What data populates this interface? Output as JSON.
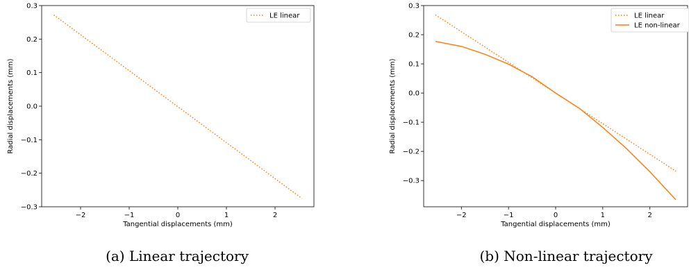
{
  "captions": {
    "a": "(a) Linear trajectory",
    "b": "(b) Non-linear trajectory"
  },
  "colors": {
    "series": "#ff7f0e",
    "axis": "#000000"
  },
  "chart_data": [
    {
      "type": "line",
      "title": "",
      "xlabel": "Tangential displacements (mm)",
      "ylabel": "Radial displacements (mm)",
      "xlim": [
        -2.8,
        2.8
      ],
      "ylim": [
        -0.3,
        0.3
      ],
      "xticks": [
        -2,
        -1,
        0,
        1,
        2
      ],
      "xtick_labels": [
        "−2",
        "−1",
        "0",
        "1",
        "2"
      ],
      "yticks": [
        -0.3,
        -0.2,
        -0.1,
        0.0,
        0.1,
        0.2,
        0.3
      ],
      "ytick_labels": [
        "−0.3",
        "−0.2",
        "−0.1",
        "0.0",
        "0.1",
        "0.2",
        "0.3"
      ],
      "legend_position": "top-right",
      "grid": false,
      "series": [
        {
          "name": "LE linear",
          "style": "dotted",
          "x": [
            -2.55,
            2.55
          ],
          "y": [
            0.272,
            -0.275
          ]
        }
      ]
    },
    {
      "type": "line",
      "title": "",
      "xlabel": "Tangential displacements (mm)",
      "ylabel": "Radial displacements (mm)",
      "xlim": [
        -2.8,
        2.8
      ],
      "ylim": [
        -0.39,
        0.3
      ],
      "xticks": [
        -2,
        -1,
        0,
        1,
        2
      ],
      "xtick_labels": [
        "−2",
        "−1",
        "0",
        "1",
        "2"
      ],
      "yticks": [
        -0.3,
        -0.2,
        -0.1,
        0.0,
        0.1,
        0.2,
        0.3
      ],
      "ytick_labels": [
        "−0.3",
        "−0.2",
        "−0.1",
        "0.0",
        "0.1",
        "0.2",
        "0.3"
      ],
      "legend_position": "top-right",
      "grid": false,
      "series": [
        {
          "name": "LE linear",
          "style": "dotted",
          "x": [
            -2.55,
            2.55
          ],
          "y": [
            0.268,
            -0.268
          ]
        },
        {
          "name": "LE non-linear",
          "style": "solid",
          "x": [
            -2.55,
            -2.0,
            -1.5,
            -1.0,
            -0.5,
            0.0,
            0.5,
            1.0,
            1.5,
            2.0,
            2.55
          ],
          "y": [
            0.177,
            0.16,
            0.133,
            0.099,
            0.056,
            0.0,
            -0.052,
            -0.118,
            -0.19,
            -0.27,
            -0.366
          ]
        }
      ]
    }
  ]
}
